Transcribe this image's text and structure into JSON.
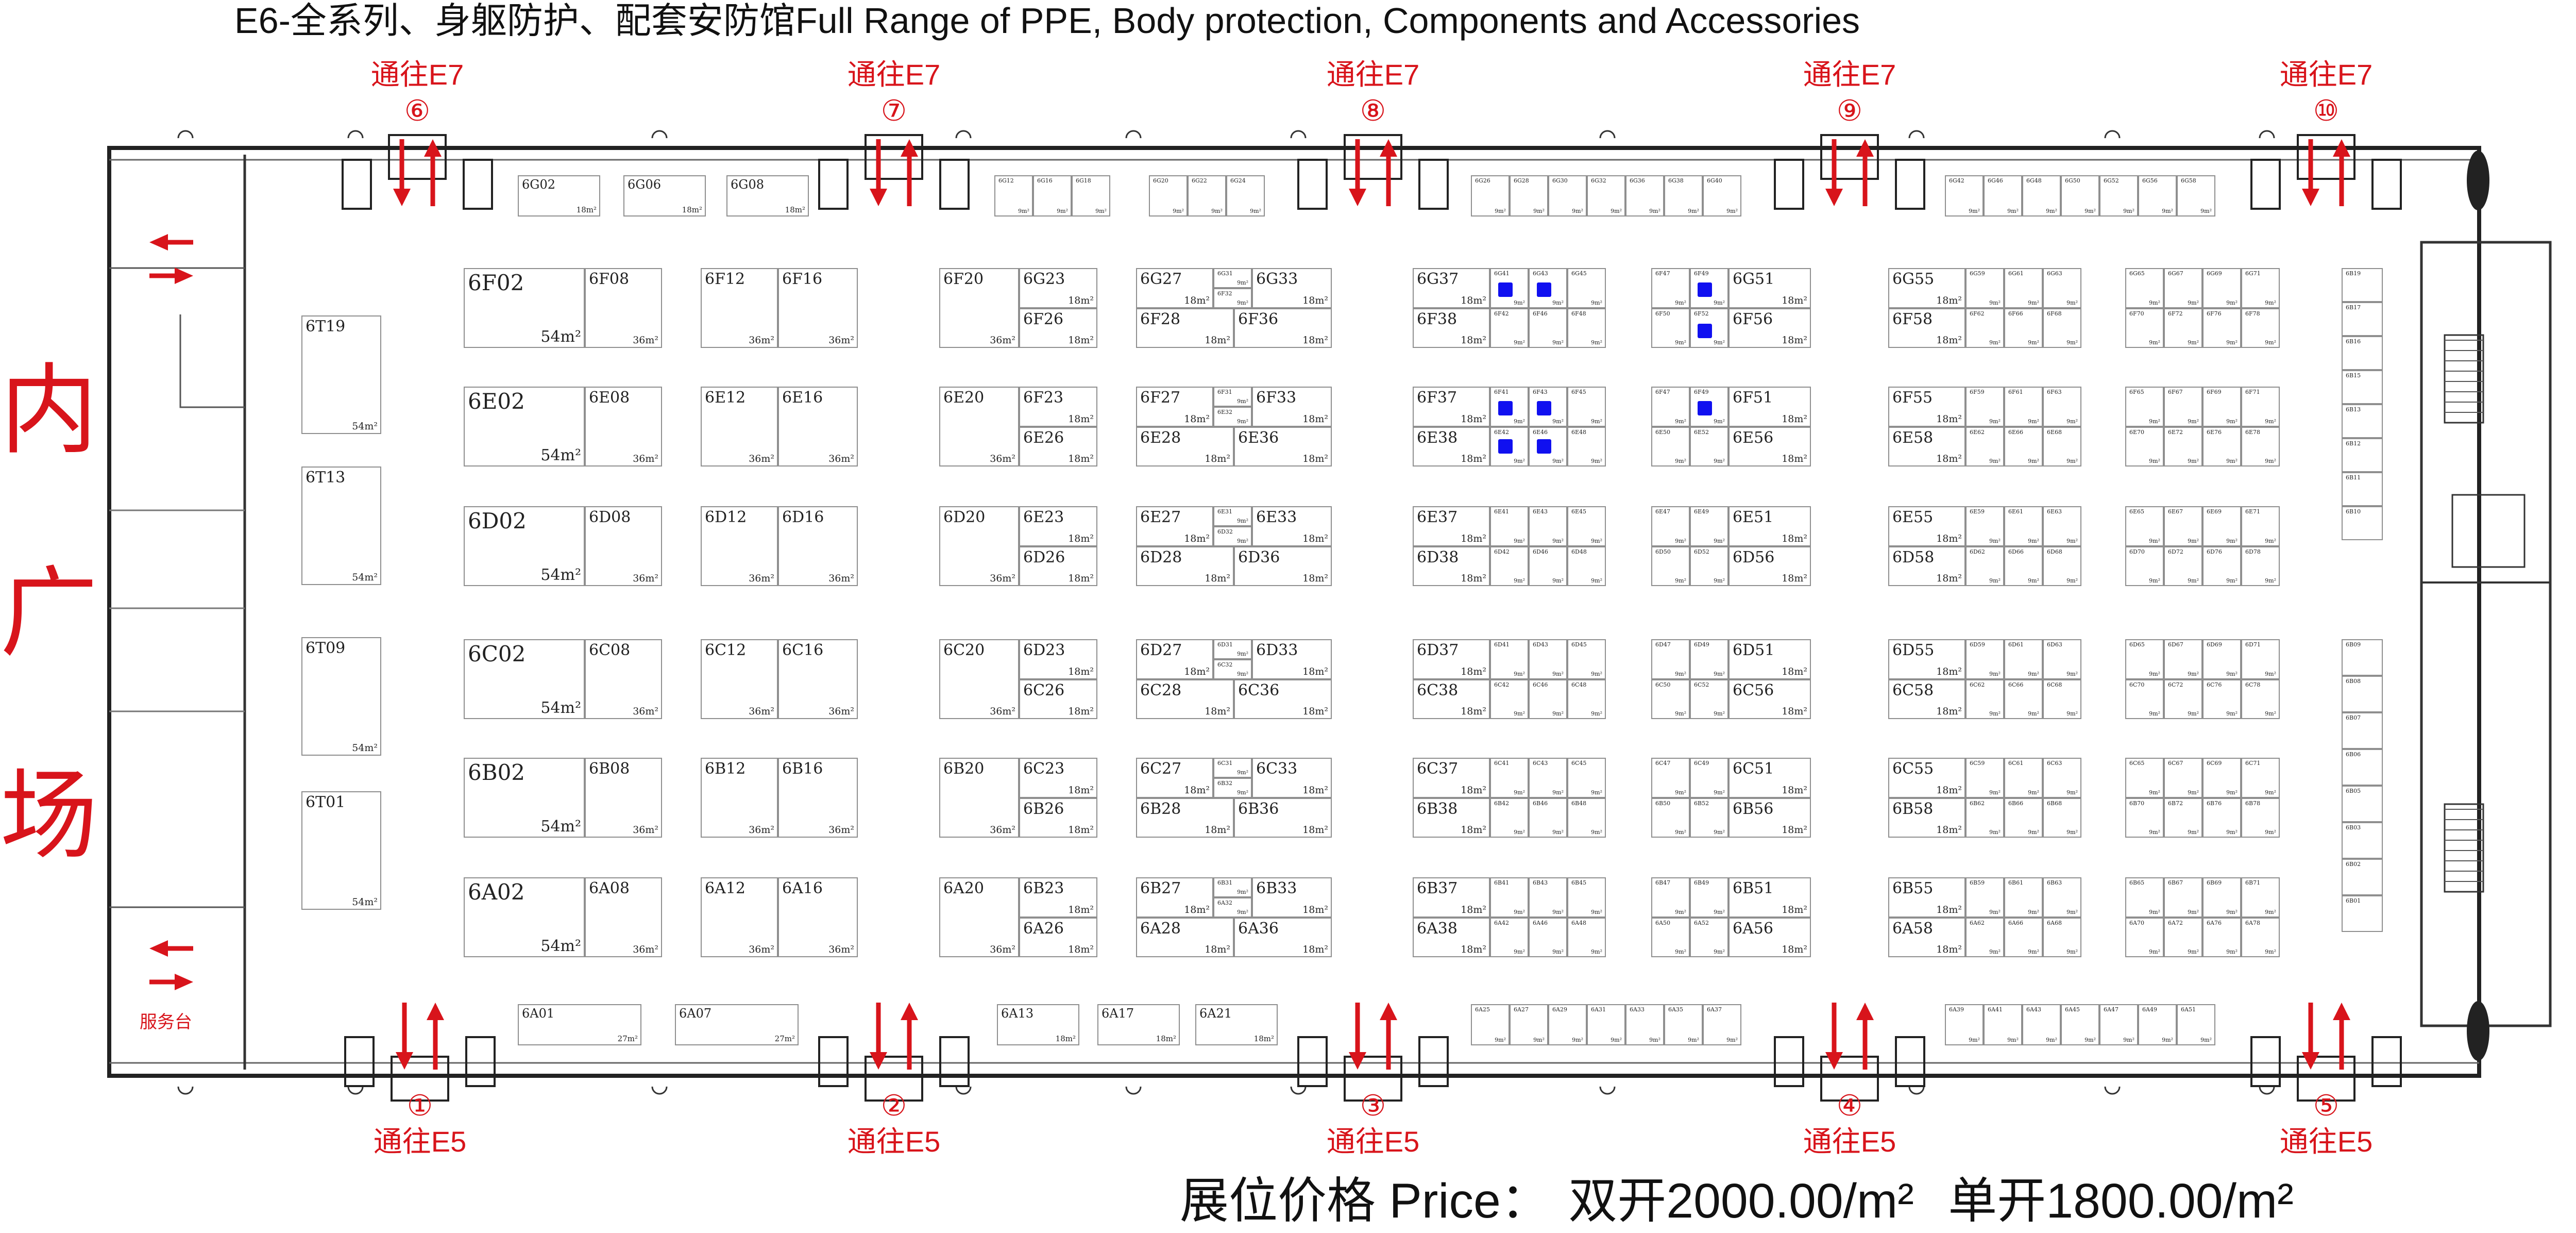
{
  "title": "E6-全系列、身躯防护、配套安防馆Full Range of PPE, Body protection, Components and Accessories",
  "price_label": "展位价格 Price：",
  "price_double": "双开2000.00/m²",
  "price_single": "单开1800.00/m²",
  "plaza_chars": [
    "内",
    "广",
    "场"
  ],
  "service_desk": "服务台",
  "colors": {
    "accent": "#d8141b",
    "sold_marker": "#1010f0",
    "wall": "#222222",
    "booth_border": "#8f8f8f"
  },
  "gates_top": [
    {
      "num": "⑥",
      "label": "通往E7"
    },
    {
      "num": "⑦",
      "label": "通往E7"
    },
    {
      "num": "⑧",
      "label": "通往E7"
    },
    {
      "num": "⑨",
      "label": "通往E7"
    },
    {
      "num": "⑩",
      "label": "通往E7"
    }
  ],
  "gates_bottom": [
    {
      "num": "①",
      "label": "通往E5"
    },
    {
      "num": "②",
      "label": "通往E5"
    },
    {
      "num": "③",
      "label": "通往E5"
    },
    {
      "num": "④",
      "label": "通往E5"
    },
    {
      "num": "⑤",
      "label": "通往E5"
    }
  ],
  "big_booths": [
    {
      "id": "6F02",
      "area": "54m²"
    },
    {
      "id": "6E02",
      "area": "54m²"
    },
    {
      "id": "6D02",
      "area": "54m²"
    },
    {
      "id": "6C02",
      "area": "54m²"
    },
    {
      "id": "6B02",
      "area": "54m²"
    },
    {
      "id": "6A02",
      "area": "54m²"
    }
  ],
  "t_booths": [
    {
      "id": "6T19",
      "area": "54m²"
    },
    {
      "id": "6T13",
      "area": "54m²"
    },
    {
      "id": "6T09",
      "area": "54m²"
    },
    {
      "id": "6T01",
      "area": "54m²"
    }
  ],
  "col_b_booths": [
    {
      "id": "6F08",
      "area": "36m²"
    },
    {
      "id": "6E08",
      "area": "36m²"
    },
    {
      "id": "6D08",
      "area": "36m²"
    },
    {
      "id": "6C08",
      "area": "36m²"
    },
    {
      "id": "6B08",
      "area": "36m²"
    },
    {
      "id": "6A08",
      "area": "36m²"
    }
  ],
  "pair_left": [
    {
      "id": "6F12",
      "area": "36m²"
    },
    {
      "id": "6E12",
      "area": "36m²"
    },
    {
      "id": "6D12",
      "area": "36m²"
    },
    {
      "id": "6C12",
      "area": "36m²"
    },
    {
      "id": "6B12",
      "area": "36m²"
    },
    {
      "id": "6A12",
      "area": "36m²"
    }
  ],
  "pair_right": [
    {
      "id": "6F16",
      "area": "36m²"
    },
    {
      "id": "6E16",
      "area": "36m²"
    },
    {
      "id": "6D16",
      "area": "36m²"
    },
    {
      "id": "6C16",
      "area": "36m²"
    },
    {
      "id": "6B16",
      "area": "36m²"
    },
    {
      "id": "6A16",
      "area": "36m²"
    }
  ],
  "col_e_left": [
    {
      "id": "6F20",
      "area": "36m²"
    },
    {
      "id": "6E20",
      "area": "36m²"
    },
    {
      "id": "6D20",
      "area": "36m²"
    },
    {
      "id": "6C20",
      "area": "36m²"
    },
    {
      "id": "6B20",
      "area": "36m²"
    },
    {
      "id": "6A20",
      "area": "36m²"
    }
  ],
  "col_e_right": [
    {
      "top": {
        "id": "6G23",
        "area": "18m²"
      },
      "bottom": {
        "id": "6F26",
        "area": "18m²"
      }
    },
    {
      "top": {
        "id": "6F23",
        "area": "18m²"
      },
      "bottom": {
        "id": "6E26",
        "area": "18m²"
      }
    },
    {
      "top": {
        "id": "6E23",
        "area": "18m²"
      },
      "bottom": {
        "id": "6D26",
        "area": "18m²"
      }
    },
    {
      "top": {
        "id": "6D23",
        "area": "18m²"
      },
      "bottom": {
        "id": "6C26",
        "area": "18m²"
      }
    },
    {
      "top": {
        "id": "6C23",
        "area": "18m²"
      },
      "bottom": {
        "id": "6B26",
        "area": "18m²"
      }
    },
    {
      "top": {
        "id": "6B23",
        "area": "18m²"
      },
      "bottom": {
        "id": "6A26",
        "area": "18m²"
      }
    }
  ],
  "col_f": [
    {
      "tl": {
        "id": "6G27",
        "area": "18m²"
      },
      "s1": {
        "id": "6G31",
        "area": "9m²"
      },
      "s2": {
        "id": "6F32",
        "area": "9m²"
      },
      "tr": {
        "id": "6G33",
        "area": "18m²"
      },
      "bl": {
        "id": "6F28",
        "area": "18m²"
      },
      "br": {
        "id": "6F36",
        "area": "18m²"
      }
    },
    {
      "tl": {
        "id": "6F27",
        "area": "18m²"
      },
      "s1": {
        "id": "6F31",
        "area": "9m²"
      },
      "s2": {
        "id": "6E32",
        "area": "9m²"
      },
      "tr": {
        "id": "6F33",
        "area": "18m²"
      },
      "bl": {
        "id": "6E28",
        "area": "18m²"
      },
      "br": {
        "id": "6E36",
        "area": "18m²"
      }
    },
    {
      "tl": {
        "id": "6E27",
        "area": "18m²"
      },
      "s1": {
        "id": "6E31",
        "area": "9m²"
      },
      "s2": {
        "id": "6D32",
        "area": "9m²"
      },
      "tr": {
        "id": "6E33",
        "area": "18m²"
      },
      "bl": {
        "id": "6D28",
        "area": "18m²"
      },
      "br": {
        "id": "6D36",
        "area": "18m²"
      }
    },
    {
      "tl": {
        "id": "6D27",
        "area": "18m²"
      },
      "s1": {
        "id": "6D31",
        "area": "9m²"
      },
      "s2": {
        "id": "6C32",
        "area": "9m²"
      },
      "tr": {
        "id": "6D33",
        "area": "18m²"
      },
      "bl": {
        "id": "6C28",
        "area": "18m²"
      },
      "br": {
        "id": "6C36",
        "area": "18m²"
      }
    },
    {
      "tl": {
        "id": "6C27",
        "area": "18m²"
      },
      "s1": {
        "id": "6C31",
        "area": "9m²"
      },
      "s2": {
        "id": "6B32",
        "area": "9m²"
      },
      "tr": {
        "id": "6C33",
        "area": "18m²"
      },
      "bl": {
        "id": "6B28",
        "area": "18m²"
      },
      "br": {
        "id": "6B36",
        "area": "18m²"
      }
    },
    {
      "tl": {
        "id": "6B27",
        "area": "18m²"
      },
      "s1": {
        "id": "6B31",
        "area": "9m²"
      },
      "s2": {
        "id": "6A32",
        "area": "9m²"
      },
      "tr": {
        "id": "6B33",
        "area": "18m²"
      },
      "bl": {
        "id": "6A28",
        "area": "18m²"
      },
      "br": {
        "id": "6A36",
        "area": "18m²"
      }
    }
  ],
  "col_g": [
    {
      "tl": {
        "id": "6G37",
        "area": "18m²"
      },
      "bl": {
        "id": "6F38",
        "area": "18m²"
      },
      "top": [
        "6G41",
        "6G43",
        "6G45"
      ],
      "bottom": [
        "6F42",
        "6F46",
        "6F48"
      ],
      "area": "9m²"
    },
    {
      "tl": {
        "id": "6F37",
        "area": "18m²"
      },
      "bl": {
        "id": "6E38",
        "area": "18m²"
      },
      "top": [
        "6F41",
        "6F43",
        "6F45"
      ],
      "bottom": [
        "6E42",
        "6E46",
        "6E48"
      ],
      "area": "9m²"
    },
    {
      "tl": {
        "id": "6E37",
        "area": "18m²"
      },
      "bl": {
        "id": "6D38",
        "area": "18m²"
      },
      "top": [
        "6E41",
        "6E43",
        "6E45"
      ],
      "bottom": [
        "6D42",
        "6D46",
        "6D48"
      ],
      "area": "9m²"
    },
    {
      "tl": {
        "id": "6D37",
        "area": "18m²"
      },
      "bl": {
        "id": "6C38",
        "area": "18m²"
      },
      "top": [
        "6D41",
        "6D43",
        "6D45"
      ],
      "bottom": [
        "6C42",
        "6C46",
        "6C48"
      ],
      "area": "9m²"
    },
    {
      "tl": {
        "id": "6C37",
        "area": "18m²"
      },
      "bl": {
        "id": "6B38",
        "area": "18m²"
      },
      "top": [
        "6C41",
        "6C43",
        "6C45"
      ],
      "bottom": [
        "6B42",
        "6B46",
        "6B48"
      ],
      "area": "9m²"
    },
    {
      "tl": {
        "id": "6B37",
        "area": "18m²"
      },
      "bl": {
        "id": "6A38",
        "area": "18m²"
      },
      "top": [
        "6B41",
        "6B43",
        "6B45"
      ],
      "bottom": [
        "6A42",
        "6A46",
        "6A48"
      ],
      "area": "9m²"
    }
  ],
  "col_h": [
    {
      "top": [
        "6F47",
        "6F49"
      ],
      "bottom": [
        "6F50",
        "6F52"
      ],
      "area": "9m²",
      "tr": {
        "id": "6G51",
        "area": "18m²"
      },
      "br": {
        "id": "6F56",
        "area": "18m²"
      }
    },
    {
      "top": [
        "6F47",
        "6F49"
      ],
      "bottom": [
        "6E50",
        "6E52"
      ],
      "area": "9m²",
      "tr": {
        "id": "6F51",
        "area": "18m²"
      },
      "br": {
        "id": "6E56",
        "area": "18m²"
      }
    },
    {
      "top": [
        "6E47",
        "6E49"
      ],
      "bottom": [
        "6D50",
        "6D52"
      ],
      "area": "9m²",
      "tr": {
        "id": "6E51",
        "area": "18m²"
      },
      "br": {
        "id": "6D56",
        "area": "18m²"
      }
    },
    {
      "top": [
        "6D47",
        "6D49"
      ],
      "bottom": [
        "6C50",
        "6C52"
      ],
      "area": "9m²",
      "tr": {
        "id": "6D51",
        "area": "18m²"
      },
      "br": {
        "id": "6C56",
        "area": "18m²"
      }
    },
    {
      "top": [
        "6C47",
        "6C49"
      ],
      "bottom": [
        "6B50",
        "6B52"
      ],
      "area": "9m²",
      "tr": {
        "id": "6C51",
        "area": "18m²"
      },
      "br": {
        "id": "6B56",
        "area": "18m²"
      }
    },
    {
      "top": [
        "6B47",
        "6B49"
      ],
      "bottom": [
        "6A50",
        "6A52"
      ],
      "area": "9m²",
      "tr": {
        "id": "6B51",
        "area": "18m²"
      },
      "br": {
        "id": "6A56",
        "area": "18m²"
      }
    }
  ],
  "col_i": [
    {
      "tl": {
        "id": "6G55",
        "area": "18m²"
      },
      "bl": {
        "id": "6F58",
        "area": "18m²"
      },
      "top": [
        "6G59",
        "6G61",
        "6G63"
      ],
      "bottom": [
        "6F62",
        "6F66",
        "6F68"
      ],
      "area": "9m²"
    },
    {
      "tl": {
        "id": "6F55",
        "area": "18m²"
      },
      "bl": {
        "id": "6E58",
        "area": "18m²"
      },
      "top": [
        "6F59",
        "6F61",
        "6F63"
      ],
      "bottom": [
        "6E62",
        "6E66",
        "6E68"
      ],
      "area": "9m²"
    },
    {
      "tl": {
        "id": "6E55",
        "area": "18m²"
      },
      "bl": {
        "id": "6D58",
        "area": "18m²"
      },
      "top": [
        "6E59",
        "6E61",
        "6E63"
      ],
      "bottom": [
        "6D62",
        "6D66",
        "6D68"
      ],
      "area": "9m²"
    },
    {
      "tl": {
        "id": "6D55",
        "area": "18m²"
      },
      "bl": {
        "id": "6C58",
        "area": "18m²"
      },
      "top": [
        "6D59",
        "6D61",
        "6D63"
      ],
      "bottom": [
        "6C62",
        "6C66",
        "6C68"
      ],
      "area": "9m²"
    },
    {
      "tl": {
        "id": "6C55",
        "area": "18m²"
      },
      "bl": {
        "id": "6B58",
        "area": "18m²"
      },
      "top": [
        "6C59",
        "6C61",
        "6C63"
      ],
      "bottom": [
        "6B62",
        "6B66",
        "6B68"
      ],
      "area": "9m²"
    },
    {
      "tl": {
        "id": "6B55",
        "area": "18m²"
      },
      "bl": {
        "id": "6A58",
        "area": "18m²"
      },
      "top": [
        "6B59",
        "6B61",
        "6B63"
      ],
      "bottom": [
        "6A62",
        "6A66",
        "6A68"
      ],
      "area": "9m²"
    }
  ],
  "col_j": [
    {
      "top": [
        "6G65",
        "6G67",
        "6G69",
        "6G71"
      ],
      "bottom": [
        "6F70",
        "6F72",
        "6F76",
        "6F78"
      ],
      "area": "9m²"
    },
    {
      "top": [
        "6F65",
        "6F67",
        "6F69",
        "6F71"
      ],
      "bottom": [
        "6E70",
        "6E72",
        "6E76",
        "6E78"
      ],
      "area": "9m²"
    },
    {
      "top": [
        "6E65",
        "6E67",
        "6E69",
        "6E71"
      ],
      "bottom": [
        "6D70",
        "6D72",
        "6D76",
        "6D78"
      ],
      "area": "9m²"
    },
    {
      "top": [
        "6D65",
        "6D67",
        "6D69",
        "6D71"
      ],
      "bottom": [
        "6C70",
        "6C72",
        "6C76",
        "6C78"
      ],
      "area": "9m²"
    },
    {
      "top": [
        "6C65",
        "6C67",
        "6C69",
        "6C71"
      ],
      "bottom": [
        "6B70",
        "6B72",
        "6B76",
        "6B78"
      ],
      "area": "9m²"
    },
    {
      "top": [
        "6B65",
        "6B67",
        "6B69",
        "6B71"
      ],
      "bottom": [
        "6A70",
        "6A72",
        "6A76",
        "6A78"
      ],
      "area": "9m²"
    }
  ],
  "right_strip_top": [
    "6B19",
    "6B17",
    "6B16",
    "6B15",
    "6B13",
    "6B12",
    "6B11",
    "6B10"
  ],
  "right_strip_bottom": [
    "6B09",
    "6B08",
    "6B07",
    "6B06",
    "6B05",
    "6B03",
    "6B02",
    "6B01"
  ],
  "top_wall_large": [
    {
      "id": "6G02",
      "area": "18m²"
    },
    {
      "id": "6G06",
      "area": "18m²"
    },
    {
      "id": "6G08",
      "area": "18m²"
    }
  ],
  "top_wall_small": [
    [
      "6G12",
      "6G16",
      "6G18"
    ],
    [
      "6G20",
      "6G22",
      "6G24"
    ],
    [
      "6G26",
      "6G28",
      "6G30",
      "6G32",
      "6G36",
      "6G38",
      "6G40"
    ],
    [
      "6G42",
      "6G46",
      "6G48",
      "6G50",
      "6G52",
      "6G56",
      "6G58"
    ]
  ],
  "bottom_wall_large": [
    {
      "id": "6A01",
      "area": "27m²"
    },
    {
      "id": "6A07",
      "area": "27m²"
    }
  ],
  "bottom_wall_mid": [
    {
      "id": "6A13",
      "area": "18m²"
    },
    {
      "id": "6A17",
      "area": "18m²"
    },
    {
      "id": "6A21",
      "area": "18m²"
    }
  ],
  "bottom_wall_small": [
    [
      "6A25",
      "6A27",
      "6A29",
      "6A31",
      "6A33",
      "6A35",
      "6A37"
    ],
    [
      "6A39",
      "6A41",
      "6A43",
      "6A45",
      "6A47",
      "6A49",
      "6A51"
    ]
  ],
  "small_area": "9m²"
}
